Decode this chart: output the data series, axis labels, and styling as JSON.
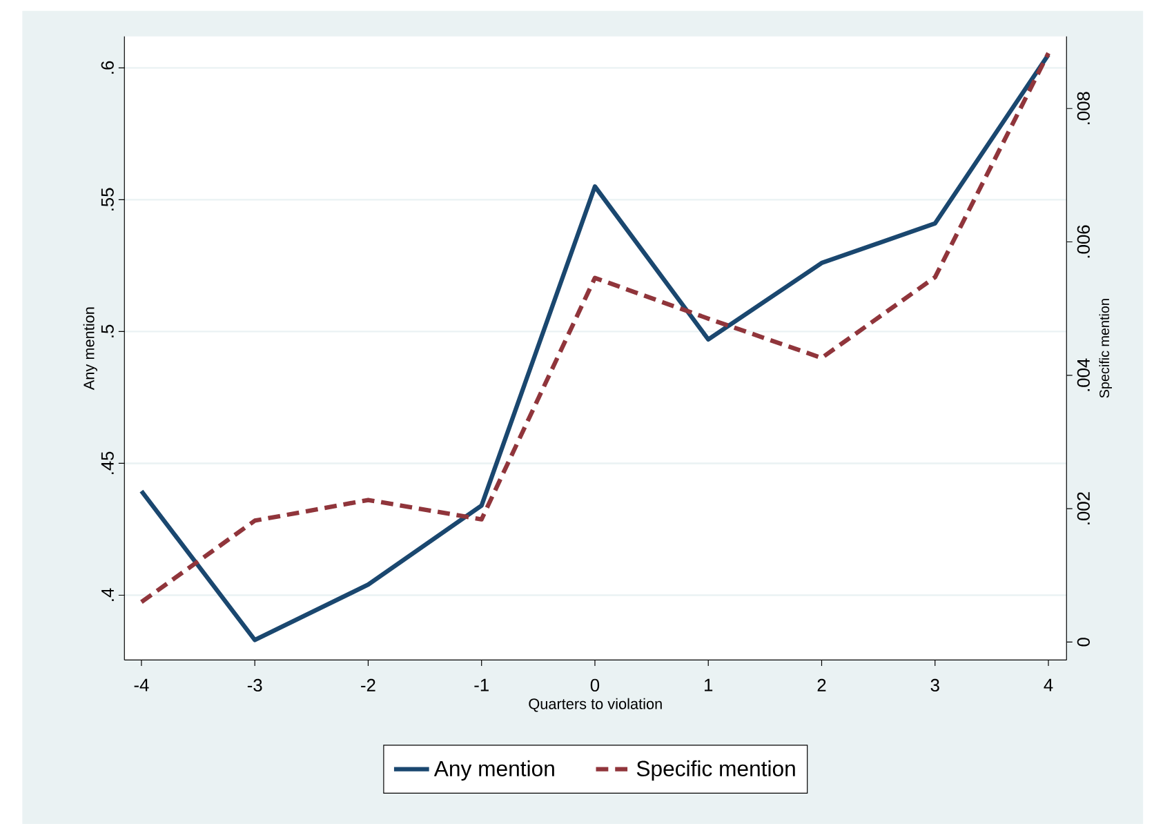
{
  "chart_data": {
    "type": "line",
    "xlabel": "Quarters to violation",
    "ylabel": "Any mention",
    "y2label": "Specific mention",
    "x": [
      -4,
      -3,
      -2,
      -1,
      0,
      1,
      2,
      3,
      4
    ],
    "xlim": [
      -4.15,
      4.16
    ],
    "xticks": [
      -4,
      -3,
      -2,
      -1,
      0,
      1,
      2,
      3,
      4
    ],
    "ylim": [
      0.3754,
      0.6119
    ],
    "yticks": [
      {
        "value": 0.4,
        "label": ".4"
      },
      {
        "value": 0.45,
        "label": ".45"
      },
      {
        "value": 0.5,
        "label": ".5"
      },
      {
        "value": 0.55,
        "label": ".55"
      },
      {
        "value": 0.6,
        "label": ".6"
      }
    ],
    "y2lim": [
      -0.00027,
      0.00908
    ],
    "y2ticks": [
      0,
      {
        "value": 0.002,
        "label": ".002"
      },
      {
        "value": 0.004,
        "label": ".004"
      },
      {
        "value": 0.006,
        "label": ".006"
      },
      {
        "value": 0.008,
        "label": ".008"
      }
    ],
    "grid": "y",
    "legend": "bottom",
    "series": [
      {
        "name": "Any mention",
        "color": "#1a476f",
        "line_style": "solid",
        "axis": "y",
        "values": [
          0.4395,
          0.383,
          0.404,
          0.434,
          0.555,
          0.497,
          0.526,
          0.541,
          0.605
        ]
      },
      {
        "name": "Specific mention",
        "color": "#90353b",
        "line_style": "dashed",
        "axis": "y2",
        "values": [
          0.0006,
          0.00182,
          0.00213,
          0.00184,
          0.00546,
          0.00485,
          0.00426,
          0.00547,
          0.00883
        ]
      }
    ]
  }
}
